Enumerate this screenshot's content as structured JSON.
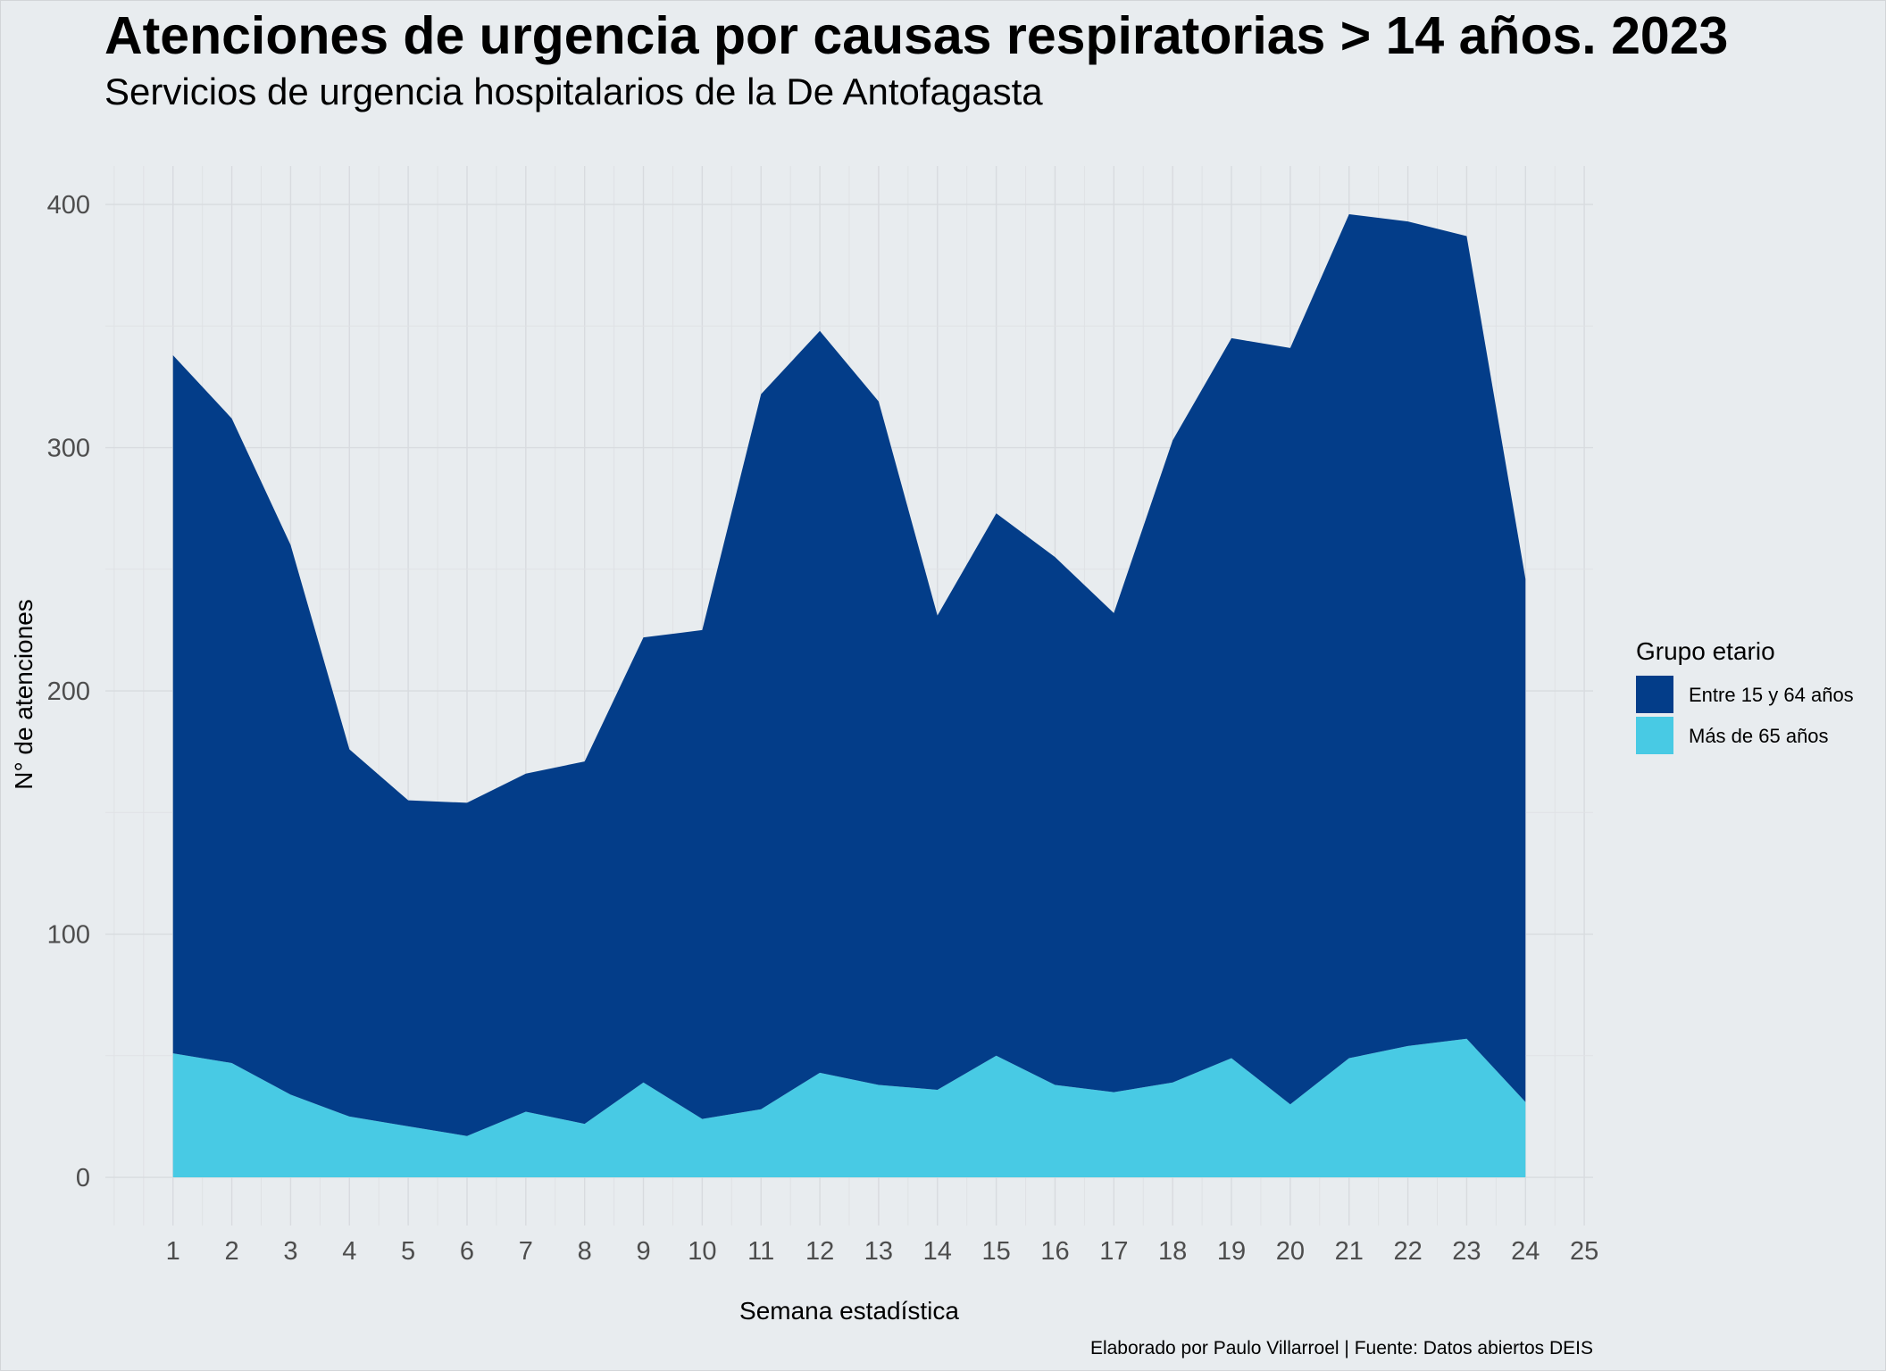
{
  "chart_data": {
    "type": "area",
    "stacked": true,
    "title": "Atenciones de urgencia por causas respiratorias > 14 años. 2023",
    "subtitle": "Servicios de urgencia hospitalarios de la De Antofagasta",
    "xlabel": "Semana estadística",
    "ylabel": "N° de atenciones",
    "caption": "Elaborado por Paulo Villarroel | Fuente: Datos abiertos DEIS",
    "x": [
      1,
      2,
      3,
      4,
      5,
      6,
      7,
      8,
      9,
      10,
      11,
      12,
      13,
      14,
      15,
      16,
      17,
      18,
      19,
      20,
      21,
      22,
      23,
      24
    ],
    "series": [
      {
        "name": "Entre 15 y 64 años",
        "color": "#033D89",
        "values": [
          287,
          265,
          226,
          151,
          134,
          137,
          139,
          149,
          183,
          201,
          294,
          305,
          281,
          195,
          223,
          217,
          197,
          264,
          296,
          311,
          347,
          339,
          330,
          215
        ]
      },
      {
        "name": "Más de 65 años",
        "color": "#48CAE4",
        "values": [
          51,
          47,
          34,
          25,
          21,
          17,
          27,
          22,
          39,
          24,
          28,
          43,
          38,
          36,
          50,
          38,
          35,
          39,
          49,
          30,
          49,
          54,
          57,
          31
        ]
      }
    ],
    "xlim": [
      -0.15,
      25.15
    ],
    "ylim": [
      -19.8,
      415.8
    ],
    "x_ticks": [
      1,
      2,
      3,
      4,
      5,
      6,
      7,
      8,
      9,
      10,
      11,
      12,
      13,
      14,
      15,
      16,
      17,
      18,
      19,
      20,
      21,
      22,
      23,
      24,
      25
    ],
    "y_ticks": [
      0,
      100,
      200,
      300,
      400
    ],
    "grid": true,
    "legend": {
      "title": "Grupo etario",
      "position": "right"
    },
    "background": "#E8ECEF"
  }
}
